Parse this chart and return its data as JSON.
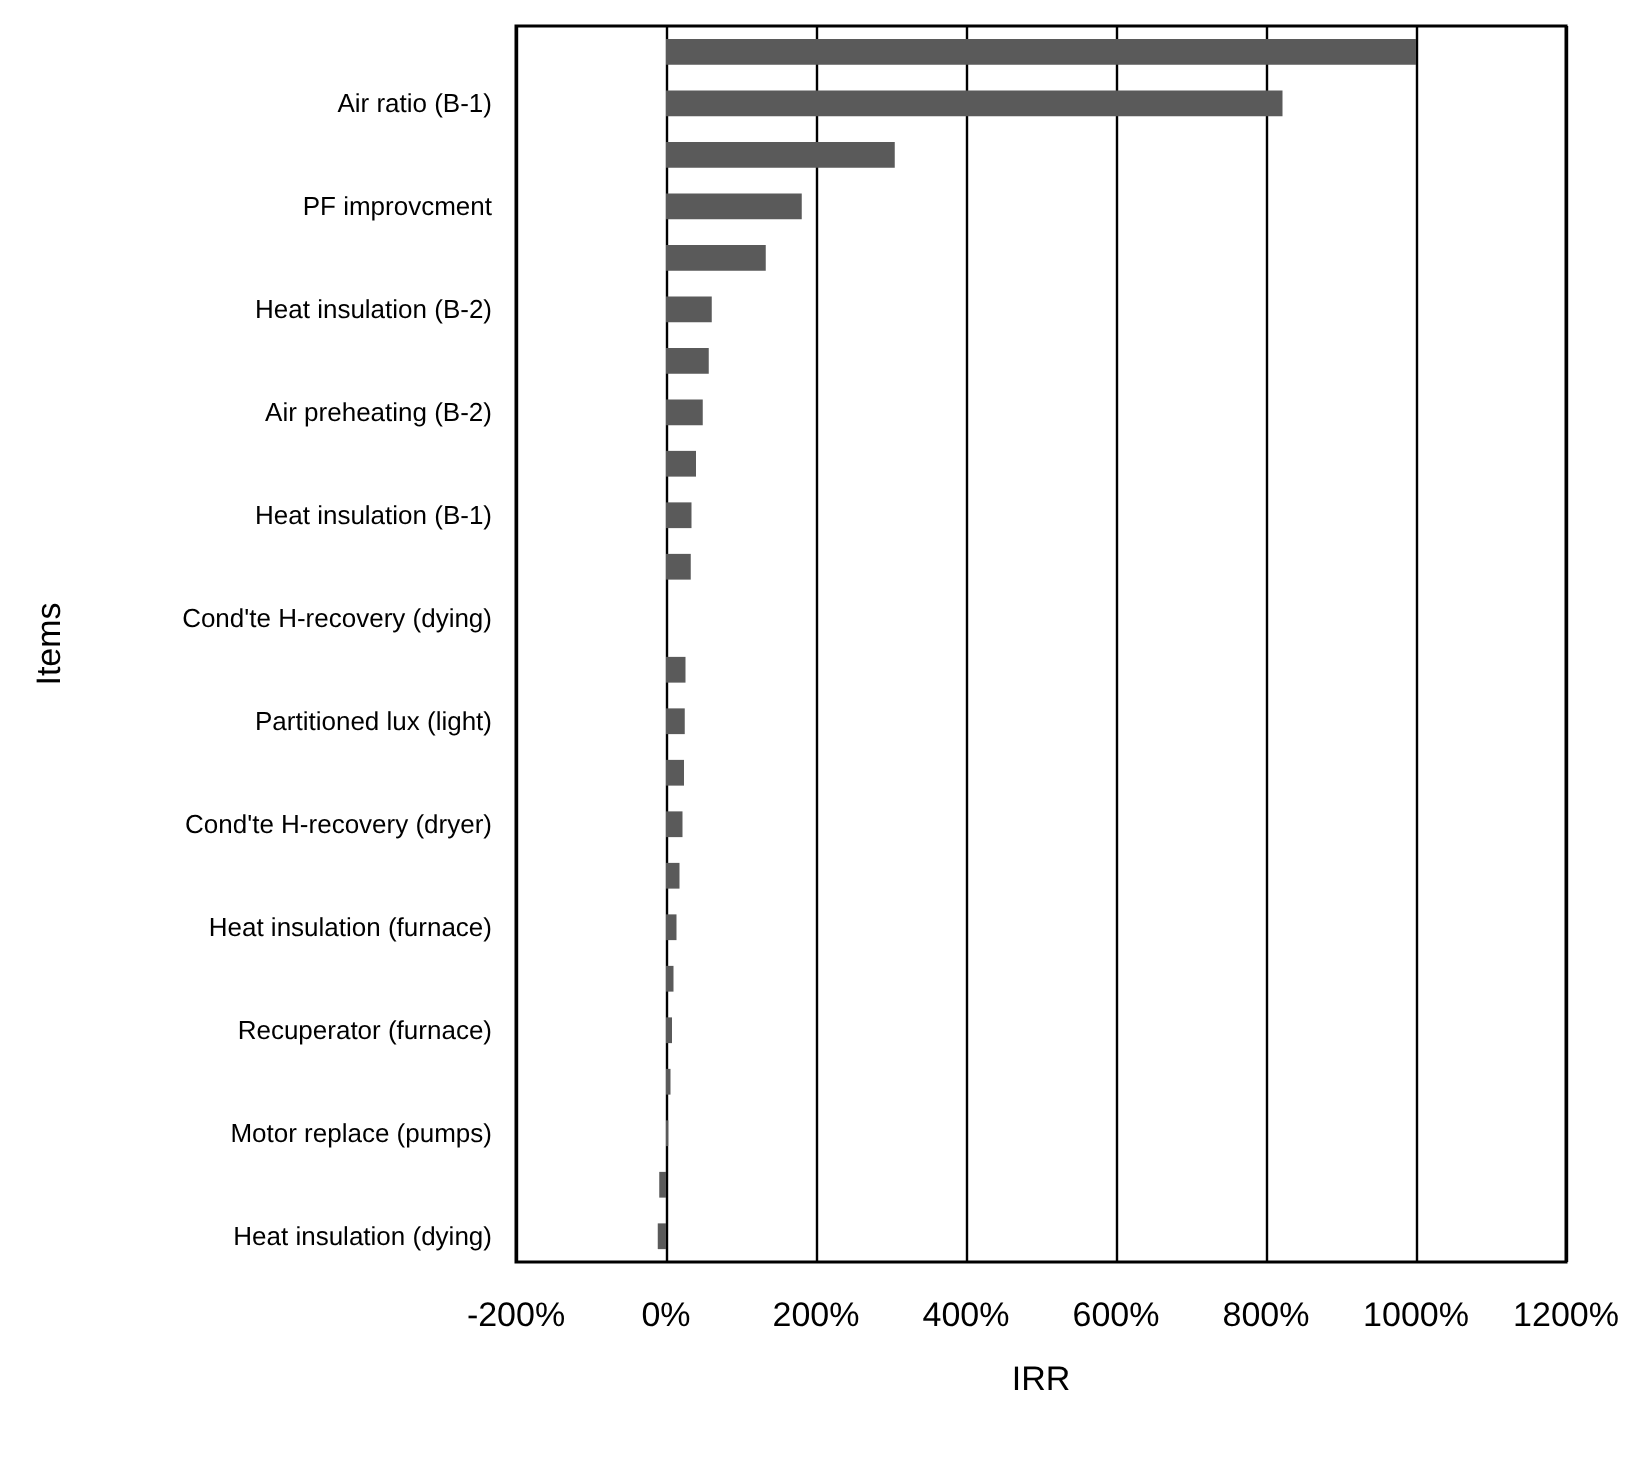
{
  "chart_data": {
    "type": "bar",
    "orientation": "horizontal",
    "xlabel": "IRR",
    "ylabel": "Items",
    "categories": [
      null,
      "Air ratio (B-1)",
      null,
      "PF improvcment",
      null,
      "Heat insulation (B-2)",
      null,
      "Air preheating (B-2)",
      null,
      "Heat insulation (B-1)",
      null,
      "Cond'te H-recovery (dying)",
      null,
      "Partitioned lux (light)",
      null,
      "Cond'te H-recovery (dryer)",
      null,
      "Heat insulation (furnace)",
      null,
      "Recuperator (furnace)",
      null,
      "Motor replace (pumps)",
      null,
      "Heat insulation (dying)"
    ],
    "values": [
      1000,
      822,
      305,
      181,
      133,
      61,
      57,
      49,
      40,
      34,
      33,
      null,
      26,
      25,
      24,
      22,
      18,
      14,
      10,
      8,
      6,
      3,
      -9,
      -11
    ],
    "color": "#5a5a5a",
    "xlim": [
      -200,
      1200
    ],
    "xticks": [
      {
        "value": -200,
        "label": "-200%"
      },
      {
        "value": 0,
        "label": "0%"
      },
      {
        "value": 200,
        "label": "200%"
      },
      {
        "value": 400,
        "label": "400%"
      },
      {
        "value": 600,
        "label": "600%"
      },
      {
        "value": 800,
        "label": "800%"
      },
      {
        "value": 1000,
        "label": "1000%"
      },
      {
        "value": 1200,
        "label": "1200%"
      }
    ],
    "grid": "x"
  }
}
